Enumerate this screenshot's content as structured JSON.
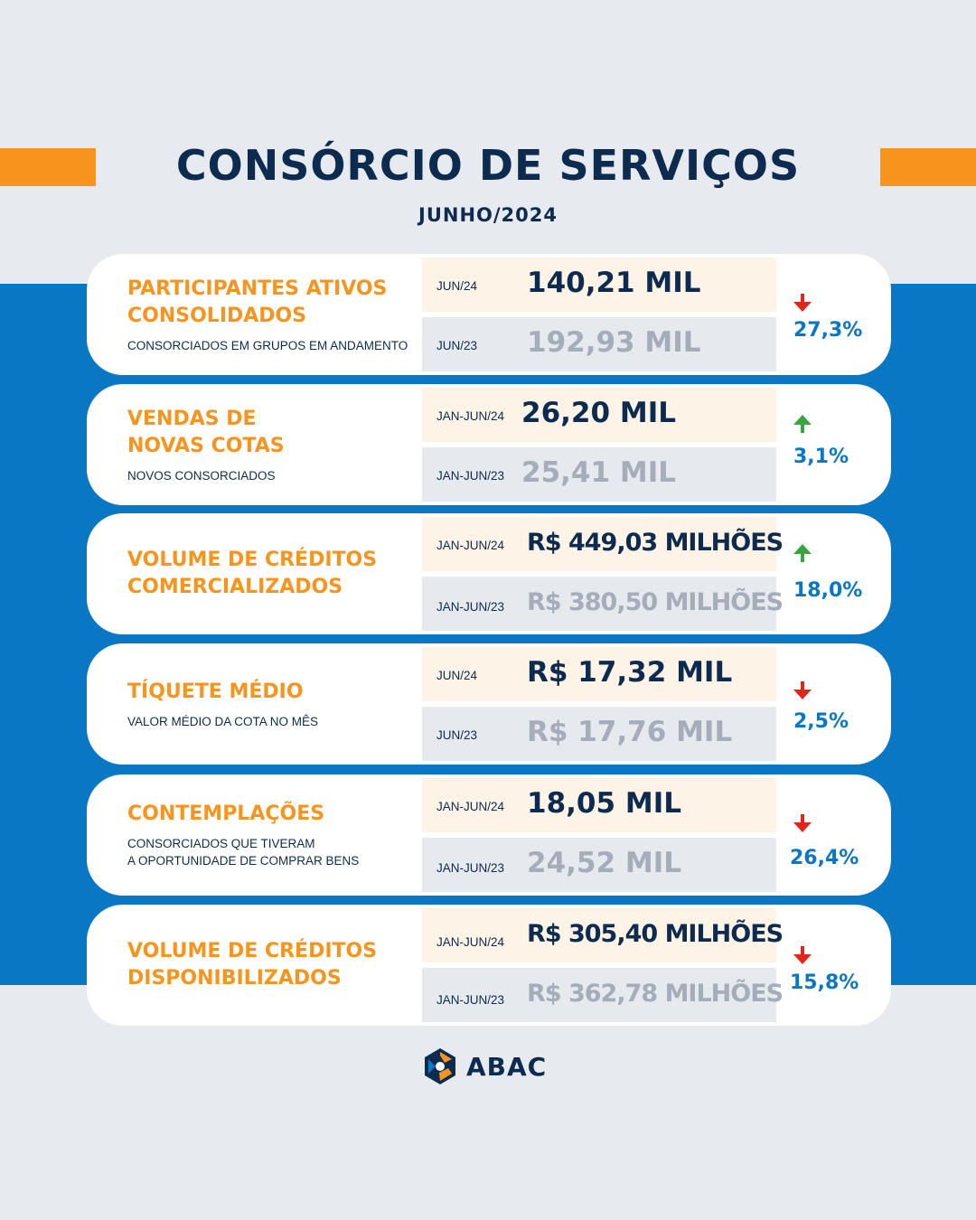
{
  "header": {
    "title": "CONSÓRCIO DE SERVIÇOS",
    "subtitle": "JUNHO/2024"
  },
  "colors": {
    "background": "#e7eaee",
    "band": "#0a77c4",
    "accent_orange": "#f7941d",
    "navy": "#0d2b4f",
    "delta_blue": "#0a77c4",
    "arrow_down": "#e0261b",
    "arrow_up": "#3aa53f"
  },
  "cards": [
    {
      "label": "PARTICIPANTES ATIVOS\nCONSOLIDADOS",
      "description": "CONSORCIADOS EM GRUPOS EM ANDAMENTO",
      "current": {
        "period": "JUN/24",
        "value": "140,21 MIL"
      },
      "previous": {
        "period": "JUN/23",
        "value": "192,93 MIL"
      },
      "change": {
        "direction": "down",
        "icon": "arrow-down-icon",
        "value": "27,3%"
      }
    },
    {
      "label": "VENDAS DE\nNOVAS COTAS",
      "description": "NOVOS CONSORCIADOS",
      "current": {
        "period": "JAN-JUN/24",
        "value": "26,20 MIL"
      },
      "previous": {
        "period": "JAN-JUN/23",
        "value": "25,41 MIL"
      },
      "change": {
        "direction": "up",
        "icon": "arrow-up-icon",
        "value": "3,1%"
      }
    },
    {
      "label": "VOLUME DE CRÉDITOS\nCOMERCIALIZADOS",
      "description": "",
      "current": {
        "period": "JAN-JUN/24",
        "value": "R$ 449,03 MILHÕES"
      },
      "previous": {
        "period": "JAN-JUN/23",
        "value": "R$ 380,50 MILHÕES"
      },
      "change": {
        "direction": "up",
        "icon": "arrow-up-icon",
        "value": "18,0%"
      }
    },
    {
      "label": "TÍQUETE MÉDIO",
      "description": "VALOR MÉDIO DA COTA NO MÊS",
      "current": {
        "period": "JUN/24",
        "value": "R$ 17,32 MIL"
      },
      "previous": {
        "period": "JUN/23",
        "value": "R$ 17,76 MIL"
      },
      "change": {
        "direction": "down",
        "icon": "arrow-down-icon",
        "value": "2,5%"
      }
    },
    {
      "label": "CONTEMPLAÇÕES",
      "description": "CONSORCIADOS QUE TIVERAM\nA OPORTUNIDADE DE COMPRAR BENS",
      "current": {
        "period": "JAN-JUN/24",
        "value": "18,05 MIL"
      },
      "previous": {
        "period": "JAN-JUN/23",
        "value": "24,52 MIL"
      },
      "change": {
        "direction": "down",
        "icon": "arrow-down-icon",
        "value": "26,4%"
      }
    },
    {
      "label": "VOLUME DE CRÉDITOS\nDISPONIBILIZADOS",
      "description": "",
      "current": {
        "period": "JAN-JUN/24",
        "value": "R$ 305,40 MILHÕES"
      },
      "previous": {
        "period": "JAN-JUN/23",
        "value": "R$ 362,78 MILHÕES"
      },
      "change": {
        "direction": "down",
        "icon": "arrow-down-icon",
        "value": "15,8%"
      }
    }
  ],
  "footer": {
    "logo_text": "ABAC",
    "logo_icon": "abac-logo-icon"
  }
}
